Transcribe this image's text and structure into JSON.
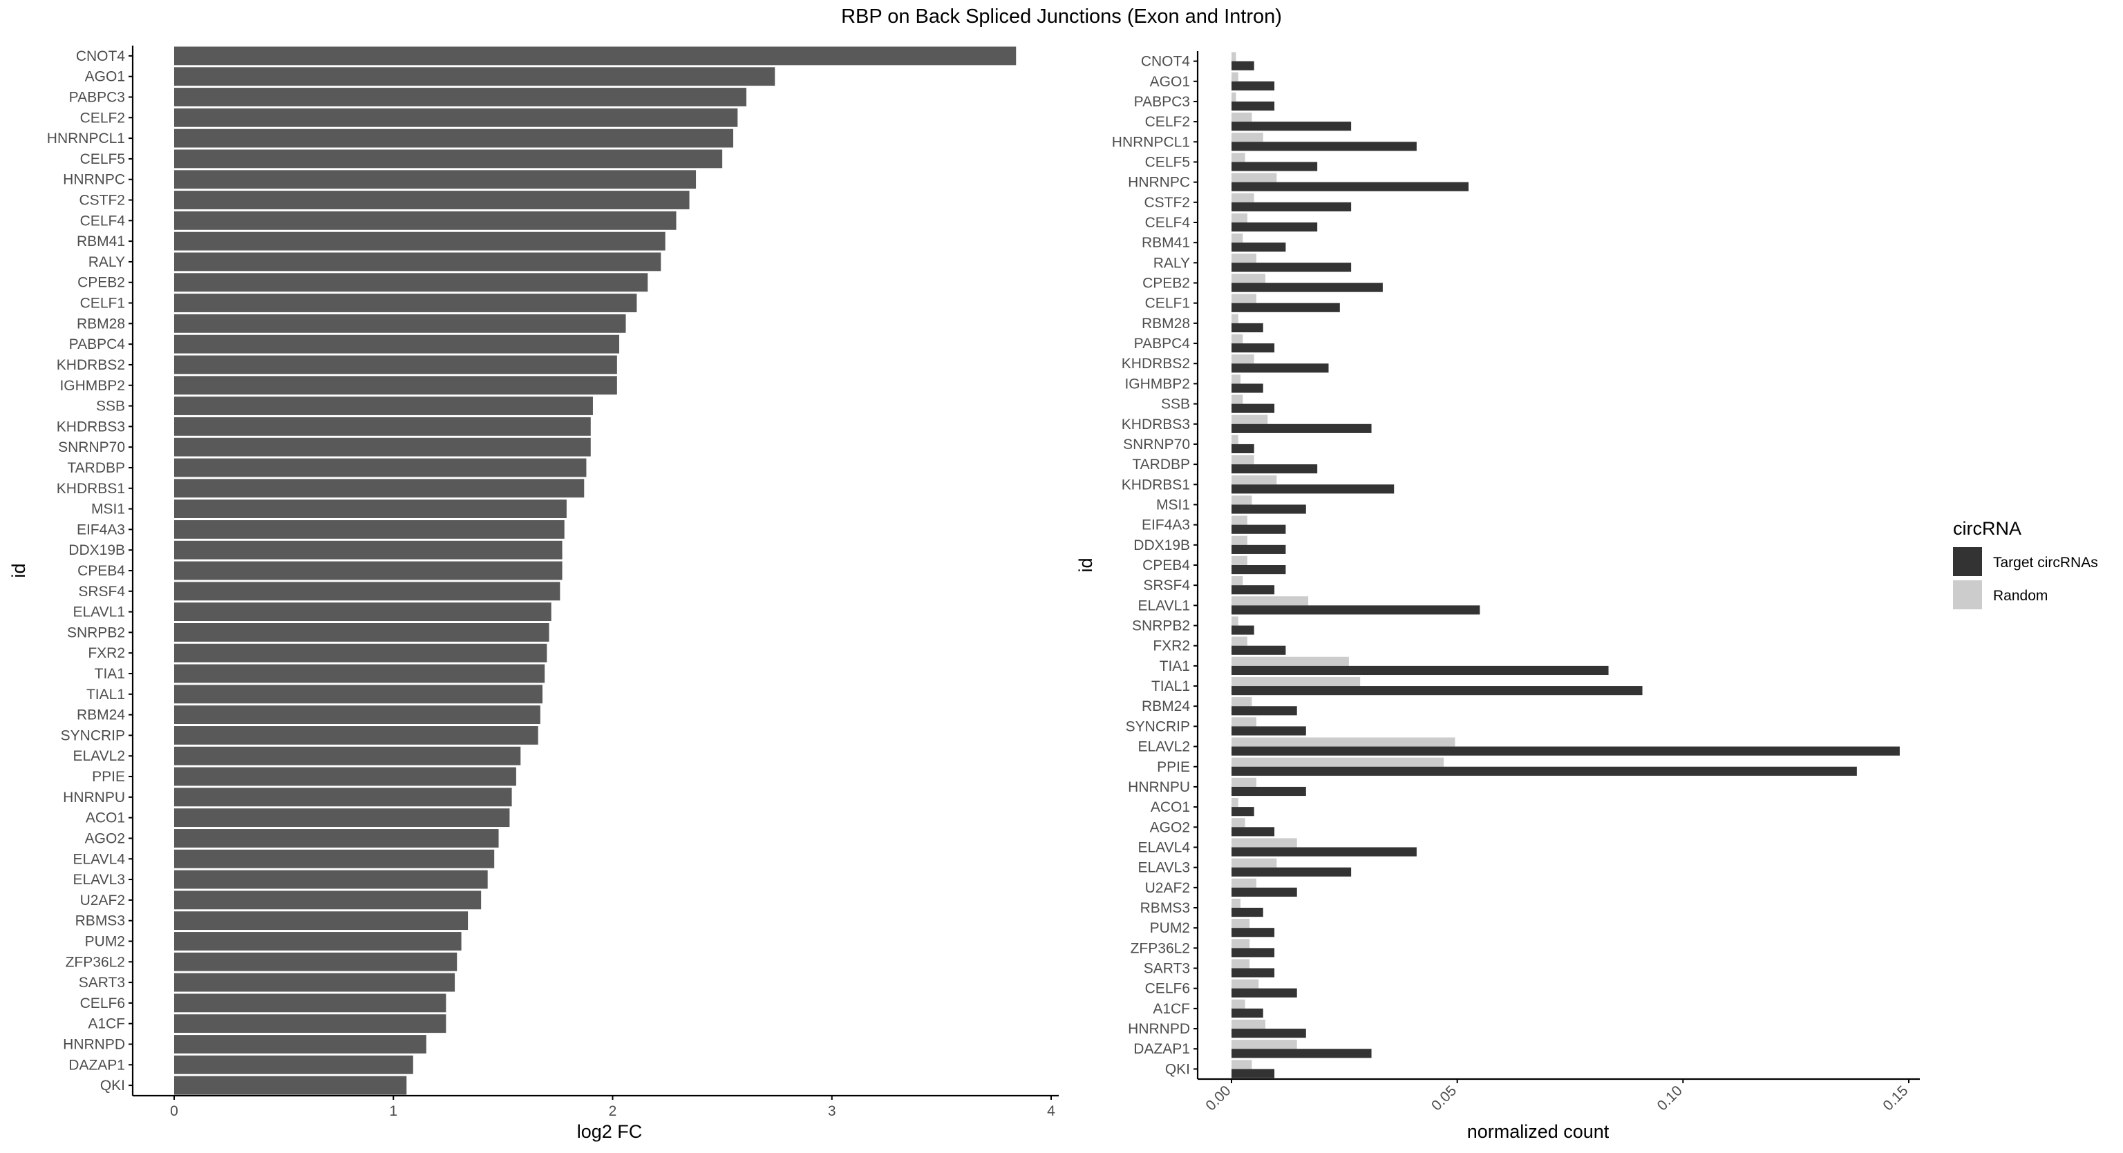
{
  "title": "RBP on Back Spliced Junctions (Exon and Intron)",
  "colors": {
    "left_bar": "#595959",
    "target": "#333333",
    "random": "#cccccc",
    "axis": "#000000",
    "tick_text": "#4d4d4d"
  },
  "chart_data": [
    {
      "type": "bar",
      "orientation": "horizontal",
      "xlabel": "log2 FC",
      "ylabel": "id",
      "xlim": [
        0,
        4
      ],
      "xticks": [
        0,
        1,
        2,
        3,
        4
      ],
      "grid": false,
      "categories": [
        "CNOT4",
        "AGO1",
        "PABPC3",
        "CELF2",
        "HNRNPCL1",
        "CELF5",
        "HNRNPC",
        "CSTF2",
        "CELF4",
        "RBM41",
        "RALY",
        "CPEB2",
        "CELF1",
        "RBM28",
        "PABPC4",
        "KHDRBS2",
        "IGHMBP2",
        "SSB",
        "KHDRBS3",
        "SNRNP70",
        "TARDBP",
        "KHDRBS1",
        "MSI1",
        "EIF4A3",
        "DDX19B",
        "CPEB4",
        "SRSF4",
        "ELAVL1",
        "SNRPB2",
        "FXR2",
        "TIA1",
        "TIAL1",
        "RBM24",
        "SYNCRIP",
        "ELAVL2",
        "PPIE",
        "HNRNPU",
        "ACO1",
        "AGO2",
        "ELAVL4",
        "ELAVL3",
        "U2AF2",
        "RBMS3",
        "PUM2",
        "ZFP36L2",
        "SART3",
        "CELF6",
        "A1CF",
        "HNRNPD",
        "DAZAP1",
        "QKI"
      ],
      "values": [
        3.84,
        2.74,
        2.61,
        2.57,
        2.55,
        2.5,
        2.38,
        2.35,
        2.29,
        2.24,
        2.22,
        2.16,
        2.11,
        2.06,
        2.03,
        2.02,
        2.02,
        1.91,
        1.9,
        1.9,
        1.88,
        1.87,
        1.79,
        1.78,
        1.77,
        1.77,
        1.76,
        1.72,
        1.71,
        1.7,
        1.69,
        1.68,
        1.67,
        1.66,
        1.58,
        1.56,
        1.54,
        1.53,
        1.48,
        1.46,
        1.43,
        1.4,
        1.34,
        1.31,
        1.29,
        1.28,
        1.24,
        1.24,
        1.15,
        1.09,
        1.06
      ]
    },
    {
      "type": "bar",
      "orientation": "horizontal",
      "xlabel": "normalized count",
      "ylabel": "id",
      "xlim": [
        -0.008,
        0.155
      ],
      "xticks": [
        0.0,
        0.05,
        0.1,
        0.15
      ],
      "xtick_labels": [
        "0.00",
        "0.05",
        "0.10",
        "0.15"
      ],
      "grid": false,
      "legend": {
        "title": "circRNA",
        "position": "right"
      },
      "categories": [
        "CNOT4",
        "AGO1",
        "PABPC3",
        "CELF2",
        "HNRNPCL1",
        "CELF5",
        "HNRNPC",
        "CSTF2",
        "CELF4",
        "RBM41",
        "RALY",
        "CPEB2",
        "CELF1",
        "RBM28",
        "PABPC4",
        "KHDRBS2",
        "IGHMBP2",
        "SSB",
        "KHDRBS3",
        "SNRNP70",
        "TARDBP",
        "KHDRBS1",
        "MSI1",
        "EIF4A3",
        "DDX19B",
        "CPEB4",
        "SRSF4",
        "ELAVL1",
        "SNRPB2",
        "FXR2",
        "TIA1",
        "TIAL1",
        "RBM24",
        "SYNCRIP",
        "ELAVL2",
        "PPIE",
        "HNRNPU",
        "ACO1",
        "AGO2",
        "ELAVL4",
        "ELAVL3",
        "U2AF2",
        "RBMS3",
        "PUM2",
        "ZFP36L2",
        "SART3",
        "CELF6",
        "A1CF",
        "HNRNPD",
        "DAZAP1",
        "QKI"
      ],
      "series": [
        {
          "name": "Target circRNAs",
          "values": [
            0.005,
            0.0095,
            0.0095,
            0.0265,
            0.041,
            0.019,
            0.0525,
            0.0265,
            0.019,
            0.012,
            0.0265,
            0.0335,
            0.024,
            0.007,
            0.0095,
            0.0215,
            0.007,
            0.0095,
            0.031,
            0.005,
            0.019,
            0.036,
            0.0165,
            0.012,
            0.012,
            0.012,
            0.0095,
            0.055,
            0.005,
            0.012,
            0.0835,
            0.091,
            0.0145,
            0.0165,
            0.148,
            0.1385,
            0.0165,
            0.005,
            0.0095,
            0.041,
            0.0265,
            0.0145,
            0.007,
            0.0095,
            0.0095,
            0.0095,
            0.0145,
            0.007,
            0.0165,
            0.031,
            0.0095
          ]
        },
        {
          "name": "Random",
          "values": [
            0.001,
            0.0015,
            0.001,
            0.0045,
            0.007,
            0.003,
            0.01,
            0.005,
            0.0035,
            0.0025,
            0.0055,
            0.0075,
            0.0055,
            0.0015,
            0.0025,
            0.005,
            0.002,
            0.0025,
            0.008,
            0.0015,
            0.005,
            0.01,
            0.0045,
            0.0035,
            0.0035,
            0.0035,
            0.0025,
            0.017,
            0.0015,
            0.0035,
            0.026,
            0.0285,
            0.0045,
            0.0055,
            0.0495,
            0.047,
            0.0055,
            0.0015,
            0.003,
            0.0145,
            0.01,
            0.0055,
            0.002,
            0.004,
            0.004,
            0.004,
            0.006,
            0.003,
            0.0075,
            0.0145,
            0.0045
          ]
        }
      ]
    }
  ]
}
